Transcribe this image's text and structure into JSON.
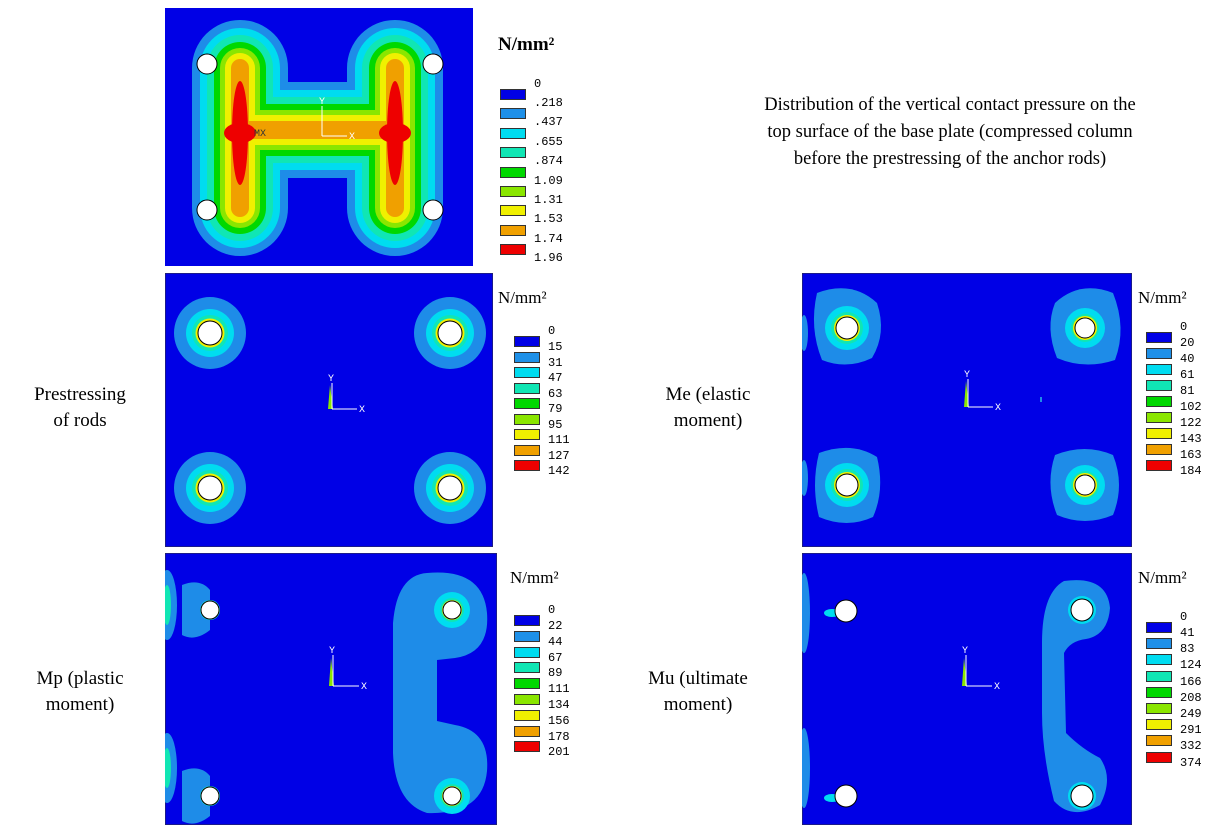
{
  "caption": [
    "Distribution of the vertical contact pressure on the",
    "top surface of the base plate (compressed column",
    "before the prestressing of the anchor rods)"
  ],
  "unit": "N/mm²",
  "axis": {
    "x": "X",
    "y": "Y",
    "mx": "MX"
  },
  "contour_colors": [
    "#0000e6",
    "#1e90e8",
    "#00dcf0",
    "#10e6b4",
    "#00d800",
    "#8ae600",
    "#f0f000",
    "#f0a000",
    "#ee0000"
  ],
  "panels": [
    {
      "id": "top",
      "label_lines": [],
      "legend_values": [
        "0",
        ".218",
        ".437",
        ".655",
        ".874",
        "1.09",
        "1.31",
        "1.53",
        "1.74",
        "1.96"
      ]
    },
    {
      "id": "prestress",
      "label_lines": [
        "Prestressing",
        "of rods"
      ],
      "legend_values": [
        "0",
        "15",
        "31",
        "47",
        "63",
        "79",
        "95",
        "111",
        "127",
        "142"
      ]
    },
    {
      "id": "me",
      "label_lines": [
        "Me (elastic",
        "moment)"
      ],
      "legend_values": [
        "0",
        "20",
        "40",
        "61",
        "81",
        "102",
        "122",
        "143",
        "163",
        "184"
      ]
    },
    {
      "id": "mp",
      "label_lines": [
        "Mp (plastic",
        "moment)"
      ],
      "legend_values": [
        "0",
        "22",
        "44",
        "67",
        "89",
        "111",
        "134",
        "156",
        "178",
        "201"
      ]
    },
    {
      "id": "mu",
      "label_lines": [
        "Mu (ultimate",
        "moment)"
      ],
      "legend_values": [
        "0",
        "41",
        "83",
        "124",
        "166",
        "208",
        "249",
        "291",
        "332",
        "374"
      ]
    }
  ]
}
